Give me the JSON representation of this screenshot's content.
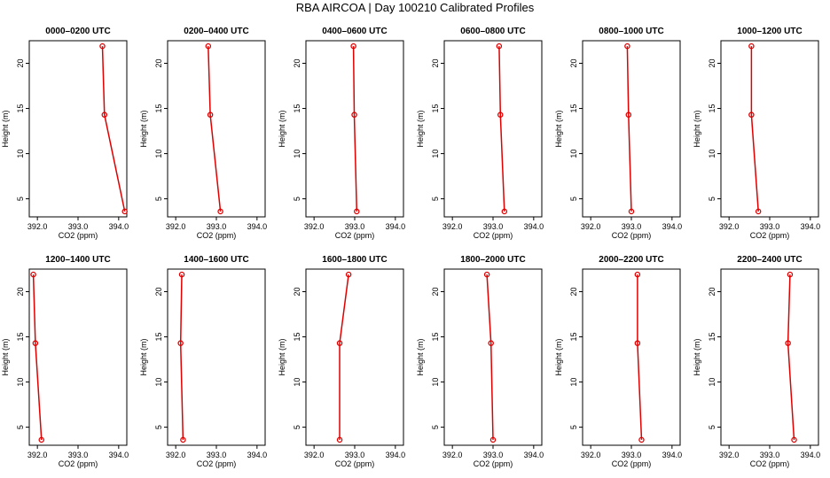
{
  "title": "RBA AIRCOA |  Day 100210  Calibrated Profiles",
  "chart_data": {
    "type": "line",
    "layout": "2 rows x 6 columns of profile panels",
    "xlabel": "CO2 (ppm)",
    "ylabel": "Height (m)",
    "xlim": [
      391.8,
      394.2
    ],
    "ylim": [
      3,
      22.5
    ],
    "xticks": [
      392.0,
      393.0,
      394.0
    ],
    "xtick_labels": [
      "392.0",
      "393.0",
      "394.0"
    ],
    "yticks": [
      5,
      10,
      15,
      20
    ],
    "ytick_labels": [
      "5",
      "10",
      "15",
      "20"
    ],
    "series_color": "#e00000",
    "panels": [
      {
        "title": "0000–0200 UTC",
        "co2": [
          393.6,
          393.65,
          394.15
        ],
        "height": [
          21.9,
          14.3,
          3.6
        ]
      },
      {
        "title": "0200–0400 UTC",
        "co2": [
          392.8,
          392.85,
          393.1
        ],
        "height": [
          21.9,
          14.3,
          3.6
        ]
      },
      {
        "title": "0400–0600 UTC",
        "co2": [
          392.97,
          392.99,
          393.05
        ],
        "height": [
          21.9,
          14.3,
          3.6
        ]
      },
      {
        "title": "0600–0800 UTC",
        "co2": [
          393.15,
          393.18,
          393.28
        ],
        "height": [
          21.9,
          14.3,
          3.6
        ]
      },
      {
        "title": "0800–1000 UTC",
        "co2": [
          392.9,
          392.93,
          393.0
        ],
        "height": [
          21.9,
          14.3,
          3.6
        ]
      },
      {
        "title": "1000–1200 UTC",
        "co2": [
          392.55,
          392.55,
          392.72
        ],
        "height": [
          21.9,
          14.3,
          3.6
        ]
      },
      {
        "title": "1200–1400 UTC",
        "co2": [
          391.9,
          391.95,
          392.1
        ],
        "height": [
          21.9,
          14.3,
          3.6
        ]
      },
      {
        "title": "1400–1600 UTC",
        "co2": [
          392.15,
          392.12,
          392.18
        ],
        "height": [
          21.9,
          14.3,
          3.6
        ]
      },
      {
        "title": "1600–1800 UTC",
        "co2": [
          392.85,
          392.63,
          392.63
        ],
        "height": [
          21.9,
          14.3,
          3.6
        ]
      },
      {
        "title": "1800–2000 UTC",
        "co2": [
          392.85,
          392.95,
          393.0
        ],
        "height": [
          21.9,
          14.3,
          3.6
        ]
      },
      {
        "title": "2000–2200 UTC",
        "co2": [
          393.15,
          393.15,
          393.25
        ],
        "height": [
          21.9,
          14.3,
          3.6
        ]
      },
      {
        "title": "2200–2400 UTC",
        "co2": [
          393.5,
          393.45,
          393.6
        ],
        "height": [
          21.9,
          14.3,
          3.6
        ]
      }
    ]
  }
}
